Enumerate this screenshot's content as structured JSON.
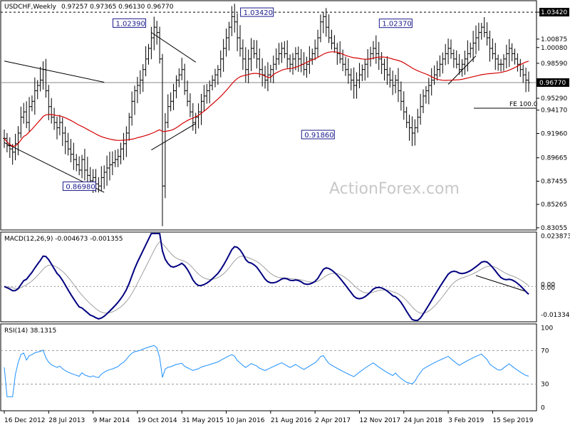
{
  "main": {
    "title": "USDCHF,Weekly",
    "ohlc": "0.97257 0.97365 0.96130 0.96770",
    "price_ticks": [
      "1.03420",
      "1.00875",
      "1.00080",
      "0.98590",
      "0.95290",
      "0.94170",
      "0.91960",
      "0.89665",
      "0.87455",
      "0.85265",
      "0.83055"
    ],
    "last_price_label": "0.96770",
    "fe_label": "FE 100.0",
    "callouts": [
      "1.02390",
      "1.03420",
      "1.02370",
      "0.91860",
      "0.86980"
    ],
    "watermark": "ActionForex.com"
  },
  "macd": {
    "title": "MACD(12,26,9) -0.004673 -0.001355",
    "ticks": [
      "0.023873",
      "0.00",
      "0.00",
      "-0.013346"
    ]
  },
  "rsi": {
    "title": "RSI(14) 38.1315",
    "ticks": [
      "100",
      "70",
      "30",
      "0"
    ]
  },
  "x_labels": [
    "16 Dec 2012",
    "28 Jul 2013",
    "9 Mar 2014",
    "19 Oct 2014",
    "31 May 2015",
    "10 Jan 2016",
    "21 Aug 2016",
    "2 Apr 2017",
    "12 Nov 2017",
    "24 Jun 2018",
    "3 Feb 2019",
    "15 Sep 2019"
  ],
  "colors": {
    "price_bars": "#000000",
    "ma": "#d40000",
    "macd": "#000080",
    "signal": "#a0a0a0",
    "rsi": "#1e90ff",
    "callout_border": "#1a1a8c",
    "current_label_bg": "#000000"
  },
  "chart_data": {
    "type": "ohlc",
    "price_range": [
      0.8305,
      1.043
    ],
    "closes": [
      0.915,
      0.908,
      0.905,
      0.902,
      0.91,
      0.92,
      0.935,
      0.94,
      0.93,
      0.945,
      0.95,
      0.96,
      0.965,
      0.97,
      0.98,
      0.96,
      0.945,
      0.935,
      0.93,
      0.925,
      0.93,
      0.92,
      0.912,
      0.905,
      0.9,
      0.895,
      0.89,
      0.885,
      0.895,
      0.885,
      0.88,
      0.875,
      0.878,
      0.872,
      0.87,
      0.878,
      0.883,
      0.887,
      0.89,
      0.892,
      0.895,
      0.898,
      0.905,
      0.91,
      0.92,
      0.935,
      0.95,
      0.96,
      0.965,
      0.97,
      0.98,
      0.99,
      1.0,
      1.01,
      1.02,
      1.015,
      0.99,
      0.87,
      0.93,
      0.945,
      0.95,
      0.96,
      0.97,
      0.975,
      0.98,
      0.96,
      0.95,
      0.94,
      0.93,
      0.935,
      0.94,
      0.95,
      0.955,
      0.96,
      0.965,
      0.97,
      0.975,
      0.98,
      0.99,
      1.0,
      1.01,
      1.02,
      1.03,
      1.025,
      1.01,
      1.0,
      0.99,
      0.98,
      0.99,
      1.0,
      0.995,
      0.99,
      0.98,
      0.975,
      0.97,
      0.975,
      0.98,
      0.985,
      0.99,
      0.995,
      1.0,
      0.995,
      0.99,
      0.985,
      0.99,
      0.995,
      0.99,
      0.985,
      0.98,
      0.985,
      0.99,
      0.995,
      1.0,
      1.01,
      1.025,
      1.03,
      1.02,
      1.01,
      1.005,
      1.0,
      0.995,
      0.99,
      0.985,
      0.98,
      0.975,
      0.97,
      0.965,
      0.97,
      0.975,
      0.98,
      0.985,
      0.99,
      0.995,
      1.0,
      0.995,
      0.99,
      0.985,
      0.98,
      0.975,
      0.97,
      0.965,
      0.97,
      0.96,
      0.95,
      0.94,
      0.93,
      0.925,
      0.92,
      0.925,
      0.935,
      0.945,
      0.955,
      0.96,
      0.965,
      0.97,
      0.975,
      0.98,
      0.985,
      0.99,
      0.995,
      1.0,
      0.995,
      0.99,
      0.985,
      0.98,
      0.985,
      0.99,
      0.995,
      1.0,
      1.005,
      1.01,
      1.015,
      1.02,
      1.015,
      1.01,
      1.0,
      0.995,
      0.99,
      0.985,
      0.985,
      0.99,
      0.995,
      1.0,
      0.995,
      0.99,
      0.985,
      0.98,
      0.975,
      0.97,
      0.9677
    ],
    "ma_period": 40,
    "macd_range": [
      -0.016,
      0.025
    ],
    "rsi_range": [
      0,
      100
    ],
    "rsi_guides": [
      70,
      30
    ],
    "x_label_bars": [
      0,
      16,
      32,
      48,
      64,
      80,
      96,
      112,
      128,
      144,
      160,
      176
    ],
    "callout_bars": [
      52,
      98,
      148,
      120,
      34
    ]
  }
}
